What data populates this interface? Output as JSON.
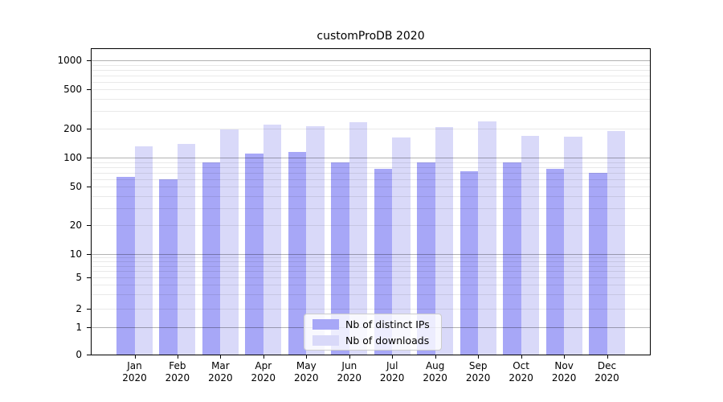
{
  "chart_data": {
    "type": "bar",
    "title": "customProDB 2020",
    "scale": "log",
    "grid": true,
    "legend_position": "lower center",
    "year": "2020",
    "categories": [
      "Jan",
      "Feb",
      "Mar",
      "Apr",
      "May",
      "Jun",
      "Jul",
      "Aug",
      "Sep",
      "Oct",
      "Nov",
      "Dec"
    ],
    "x_tick_labels": [
      "Jan 2020",
      "Feb 2020",
      "Mar 2020",
      "Apr 2020",
      "May 2020",
      "Jun 2020",
      "Jul 2020",
      "Aug 2020",
      "Sep 2020",
      "Oct 2020",
      "Nov 2020",
      "Dec 2020"
    ],
    "y_ticks": [
      0,
      1,
      2,
      5,
      10,
      20,
      50,
      100,
      200,
      500,
      1000
    ],
    "ylim": [
      0,
      1200
    ],
    "series": [
      {
        "name": "Nb of distinct IPs",
        "color": "#a7a7f7",
        "values": [
          63,
          60,
          89,
          110,
          115,
          89,
          77,
          89,
          72,
          89,
          77,
          70
        ]
      },
      {
        "name": "Nb of downloads",
        "color": "#d9d9f9",
        "values": [
          132,
          140,
          197,
          218,
          211,
          232,
          163,
          205,
          238,
          169,
          164,
          189
        ]
      }
    ]
  }
}
